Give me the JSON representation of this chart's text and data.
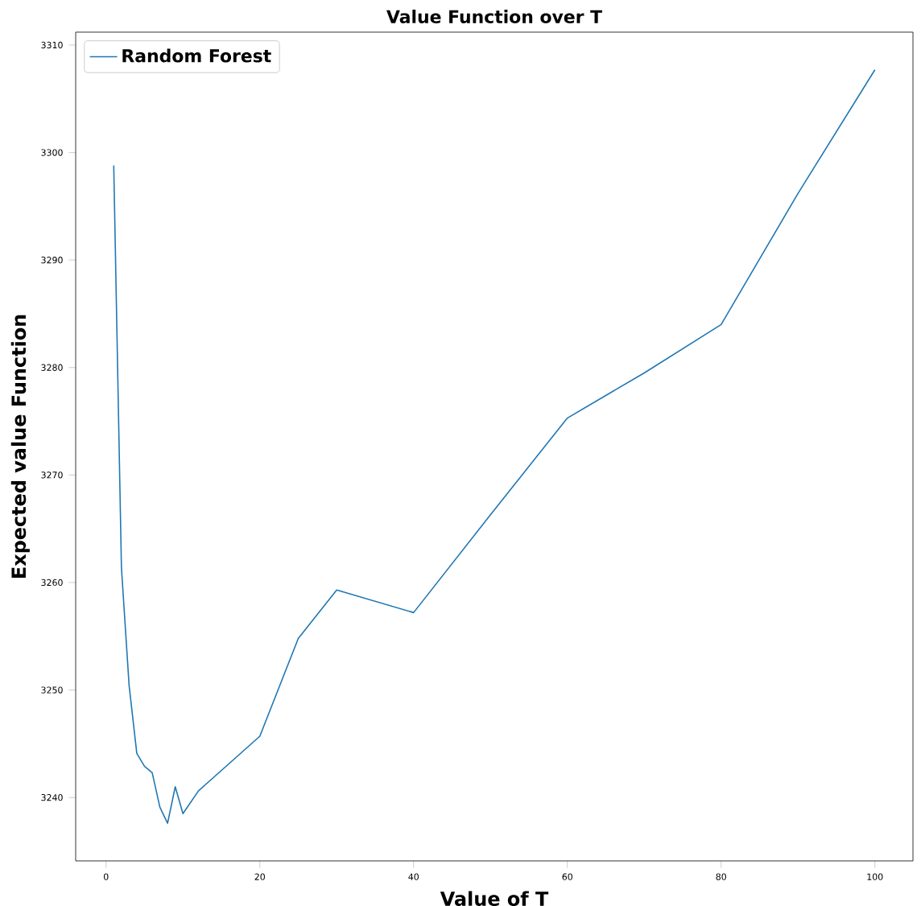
{
  "chart_data": {
    "type": "line",
    "title": "Value Function over T",
    "xlabel": "Value of T",
    "ylabel": "Expected value Function",
    "x": [
      1,
      2,
      3,
      4,
      5,
      6,
      7,
      8,
      9,
      10,
      12,
      20,
      25,
      30,
      40,
      50,
      60,
      70,
      80,
      90,
      100
    ],
    "series": [
      {
        "name": "Random Forest",
        "color": "#1f77b4",
        "values": [
          3298.8,
          3261.4,
          3250.4,
          3244.1,
          3242.9,
          3242.3,
          3239.1,
          3237.6,
          3241.0,
          3238.5,
          3240.6,
          3245.7,
          3254.8,
          3259.3,
          3257.2,
          3266.3,
          3275.3,
          3279.5,
          3284.0,
          3296.2,
          3307.7
        ]
      }
    ],
    "xlim": [
      -3.95,
      104.95
    ],
    "ylim": [
      3234.1,
      3311.2
    ],
    "xticks": [
      0,
      20,
      40,
      60,
      80,
      100
    ],
    "yticks": [
      3240,
      3250,
      3260,
      3270,
      3280,
      3290,
      3300,
      3310
    ],
    "legend": "top left",
    "grid": false,
    "marker": "none",
    "line_style": "solid"
  }
}
